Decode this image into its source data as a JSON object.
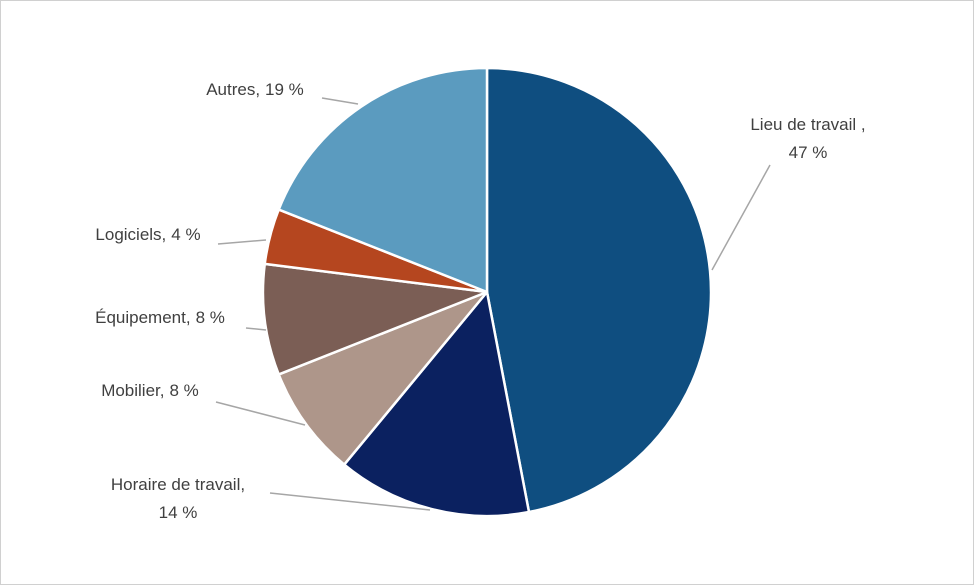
{
  "chart_data": {
    "type": "pie",
    "categories": [
      "Lieu de travail ,",
      "Horaire de travail,",
      "Mobilier,",
      "Équipement,",
      "Logiciels,",
      "Autres,"
    ],
    "values": [
      47,
      14,
      8,
      8,
      4,
      19
    ],
    "value_labels": [
      "47 %",
      "14 %",
      "8 %",
      "8 %",
      "4 %",
      "19 %"
    ],
    "colors": [
      "#0f4e80",
      "#0b2160",
      "#ae968a",
      "#7b5e55",
      "#b5461f",
      "#5b9bbf"
    ]
  }
}
